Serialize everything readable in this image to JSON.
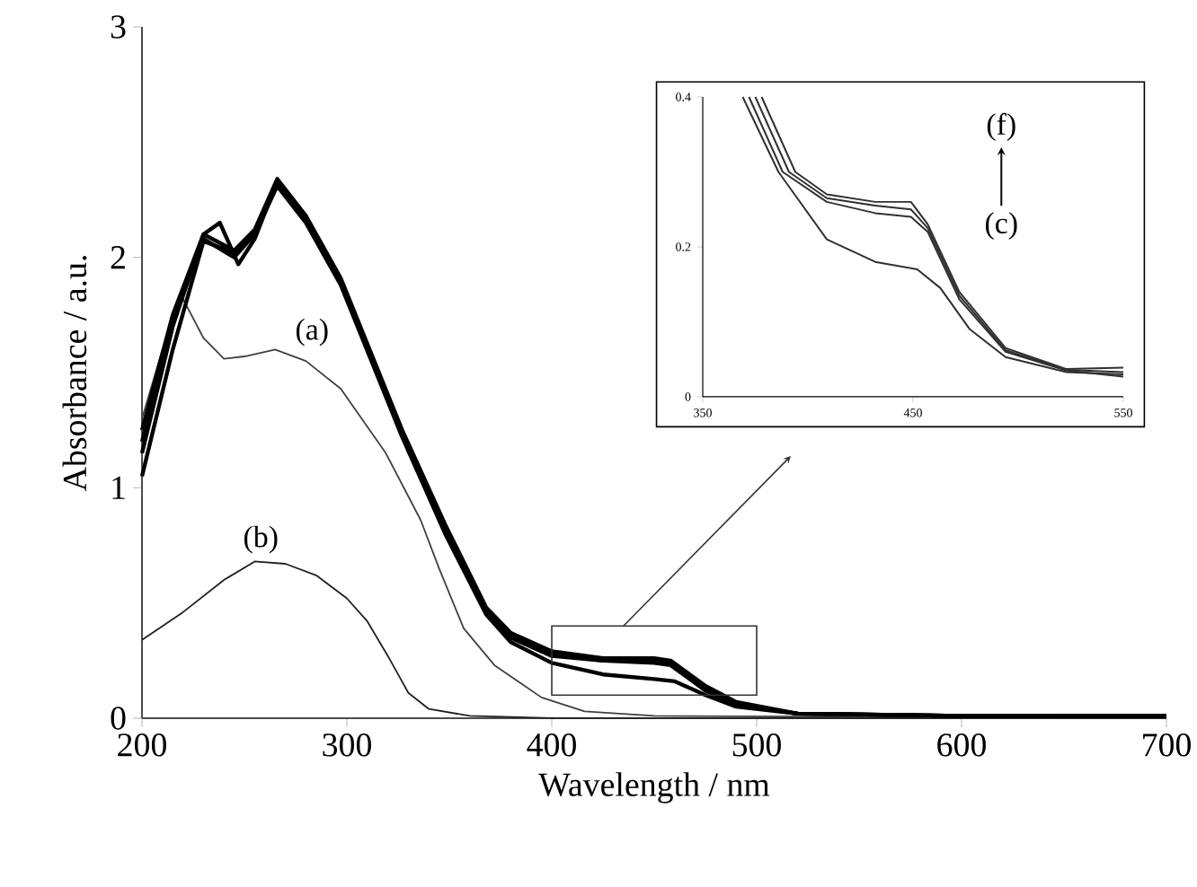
{
  "chart_data": [
    {
      "type": "line",
      "xlabel": "Wavelength / nm",
      "ylabel": "Absorbance / a.u.",
      "xlim": [
        200,
        700
      ],
      "ylim": [
        0,
        3
      ],
      "xticks": [
        200,
        300,
        400,
        500,
        600,
        700
      ],
      "yticks": [
        0,
        1,
        2,
        3
      ],
      "annotations": [
        {
          "text": "(a)",
          "x": 283,
          "y": 1.58
        },
        {
          "text": "(b)",
          "x": 258,
          "y": 0.68
        }
      ],
      "series": [
        {
          "color": "#404040",
          "x": [
            200,
            210,
            220,
            230,
            240,
            250,
            265,
            280,
            297,
            319,
            336,
            345,
            357,
            372,
            395,
            416,
            450,
            700
          ],
          "values": [
            1.3,
            1.6,
            1.82,
            1.65,
            1.56,
            1.57,
            1.6,
            1.55,
            1.43,
            1.15,
            0.86,
            0.65,
            0.39,
            0.23,
            0.09,
            0.03,
            0.01,
            0
          ]
        },
        {
          "color": "#202020",
          "x": [
            200,
            220,
            240,
            255,
            270,
            285,
            300,
            310,
            320,
            330,
            340,
            360,
            400,
            700
          ],
          "values": [
            0.34,
            0.46,
            0.6,
            0.68,
            0.67,
            0.62,
            0.52,
            0.42,
            0.27,
            0.11,
            0.04,
            0.01,
            0,
            0
          ]
        },
        {
          "color": "#000000",
          "x": [
            200,
            215,
            230,
            245,
            255,
            266,
            280,
            297,
            327,
            348,
            368,
            380,
            400,
            425,
            450,
            460,
            475,
            490,
            520,
            600,
            700
          ],
          "values": [
            1.05,
            1.6,
            2.07,
            2.02,
            2.1,
            2.31,
            2.15,
            1.88,
            1.22,
            0.8,
            0.45,
            0.33,
            0.24,
            0.19,
            0.17,
            0.16,
            0.1,
            0.05,
            0.02,
            0.01,
            0.01
          ]
        },
        {
          "color": "#000000",
          "x": [
            200,
            215,
            230,
            238,
            247,
            255,
            266,
            280,
            297,
            327,
            348,
            368,
            380,
            400,
            425,
            450,
            458,
            475,
            490,
            520,
            600,
            700
          ],
          "values": [
            1.15,
            1.7,
            2.1,
            2.15,
            1.97,
            2.08,
            2.33,
            2.17,
            1.9,
            1.24,
            0.83,
            0.47,
            0.36,
            0.28,
            0.25,
            0.24,
            0.23,
            0.12,
            0.06,
            0.02,
            0.01,
            0.01
          ]
        },
        {
          "color": "#000000",
          "x": [
            200,
            215,
            230,
            245,
            255,
            266,
            280,
            297,
            327,
            348,
            368,
            380,
            400,
            425,
            450,
            458,
            475,
            490,
            520,
            600,
            700
          ],
          "values": [
            1.2,
            1.72,
            2.08,
            2.0,
            2.1,
            2.32,
            2.16,
            1.89,
            1.23,
            0.82,
            0.46,
            0.35,
            0.27,
            0.25,
            0.25,
            0.24,
            0.13,
            0.06,
            0.02,
            0.01,
            0.01
          ]
        },
        {
          "color": "#000000",
          "x": [
            200,
            215,
            230,
            245,
            255,
            266,
            280,
            297,
            327,
            348,
            368,
            380,
            400,
            425,
            450,
            458,
            475,
            490,
            520,
            600,
            700
          ],
          "values": [
            1.25,
            1.75,
            2.1,
            2.03,
            2.12,
            2.34,
            2.18,
            1.91,
            1.25,
            0.84,
            0.48,
            0.37,
            0.29,
            0.26,
            0.26,
            0.25,
            0.14,
            0.07,
            0.02,
            0.01,
            0.01
          ]
        }
      ]
    },
    {
      "type": "line",
      "xlim": [
        350,
        550
      ],
      "ylim": [
        0,
        0.4
      ],
      "xticks": [
        350,
        450,
        550
      ],
      "yticks": [
        0,
        0.2,
        0.4
      ],
      "annotations": [
        "(f)",
        "(c)"
      ],
      "series": [
        {
          "color": "#303030",
          "x": [
            369,
            386,
            409,
            432,
            452,
            463,
            477,
            494,
            523,
            550
          ],
          "values": [
            0.4,
            0.3,
            0.21,
            0.18,
            0.17,
            0.145,
            0.09,
            0.053,
            0.033,
            0.03
          ]
        },
        {
          "color": "#303030",
          "x": [
            372,
            388,
            409,
            432,
            449,
            457,
            472,
            494,
            523,
            550
          ],
          "values": [
            0.4,
            0.3,
            0.26,
            0.245,
            0.24,
            0.22,
            0.13,
            0.06,
            0.035,
            0.027
          ]
        },
        {
          "color": "#303030",
          "x": [
            375,
            391,
            409,
            432,
            449,
            457,
            472,
            494,
            523,
            550
          ],
          "values": [
            0.4,
            0.3,
            0.265,
            0.255,
            0.25,
            0.225,
            0.135,
            0.062,
            0.036,
            0.033
          ]
        },
        {
          "color": "#303030",
          "x": [
            378,
            394,
            409,
            432,
            449,
            457,
            472,
            494,
            523,
            550
          ],
          "values": [
            0.4,
            0.3,
            0.27,
            0.26,
            0.26,
            0.23,
            0.14,
            0.065,
            0.037,
            0.039
          ]
        }
      ]
    }
  ]
}
